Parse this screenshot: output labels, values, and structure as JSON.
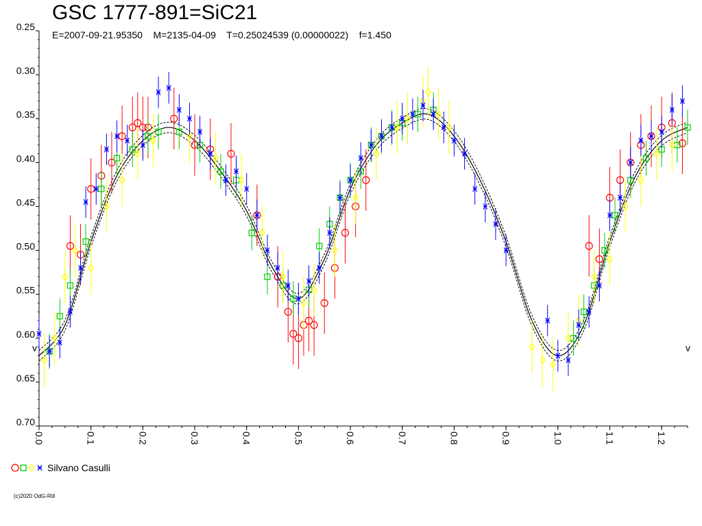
{
  "header": {
    "title": "GSC 1777-891=SiC21",
    "subtitle": "E=2007-09-21.95350    M=2135-04-09    T=0.25024539 (0.00000022)    f=1.450"
  },
  "legend": {
    "observer": "Silvano Casulli",
    "colors": [
      "#ff0000",
      "#00cc00",
      "#ffff00",
      "#0000ff"
    ]
  },
  "copyright": "(c)2020 OdG-Rill",
  "chart_data": {
    "type": "scatter",
    "title": "GSC 1777-891=SiC21",
    "xlim": [
      0.0,
      1.25
    ],
    "ylim": [
      0.25,
      0.7
    ],
    "y_inverted": true,
    "x_ticks": [
      "0.0",
      "0.1",
      "0.2",
      "0.3",
      "0.4",
      "0.5",
      "0.6",
      "0.7",
      "0.8",
      "0.9",
      "1.0",
      "1.1",
      "1.2"
    ],
    "y_ticks": [
      "0.25",
      "0.30",
      "0.35",
      "0.40",
      "0.45",
      "0.50",
      "0.55",
      "0.60",
      "0.65",
      "0.70"
    ],
    "model": {
      "name": "light curve fit",
      "x": [
        0.0,
        0.05,
        0.1,
        0.15,
        0.2,
        0.25,
        0.3,
        0.35,
        0.4,
        0.45,
        0.5,
        0.55,
        0.6,
        0.65,
        0.7,
        0.75,
        0.8,
        0.85,
        0.9,
        0.95,
        1.0,
        1.05,
        1.1,
        1.15,
        1.2,
        1.25
      ],
      "y": [
        0.62,
        0.585,
        0.49,
        0.415,
        0.375,
        0.36,
        0.375,
        0.41,
        0.455,
        0.52,
        0.555,
        0.51,
        0.43,
        0.38,
        0.355,
        0.345,
        0.37,
        0.42,
        0.49,
        0.58,
        0.62,
        0.585,
        0.49,
        0.415,
        0.375,
        0.36
      ],
      "band": 0.006
    },
    "series": [
      {
        "name": "Silvano Casulli (red)",
        "marker": "circle",
        "color": "#ff0000",
        "x": [
          0.06,
          0.08,
          0.1,
          0.12,
          0.14,
          0.16,
          0.18,
          0.19,
          0.2,
          0.21,
          0.26,
          0.3,
          0.33,
          0.37,
          0.42,
          0.46,
          0.48,
          0.49,
          0.5,
          0.51,
          0.52,
          0.53,
          0.55,
          0.57,
          0.59,
          0.61,
          0.63,
          1.06,
          1.08,
          1.1,
          1.12,
          1.14,
          1.16,
          1.18,
          1.2,
          1.22,
          1.24
        ],
        "y": [
          0.495,
          0.505,
          0.43,
          0.415,
          0.4,
          0.37,
          0.36,
          0.355,
          0.36,
          0.36,
          0.35,
          0.38,
          0.385,
          0.39,
          0.46,
          0.53,
          0.57,
          0.595,
          0.6,
          0.585,
          0.58,
          0.585,
          0.56,
          0.52,
          0.48,
          0.45,
          0.42,
          0.495,
          0.51,
          0.44,
          0.42,
          0.4,
          0.38,
          0.37,
          0.36,
          0.355,
          0.378
        ],
        "err": 0.035
      },
      {
        "name": "Silvano Casulli (green)",
        "marker": "square",
        "color": "#00cc00",
        "x": [
          0.02,
          0.04,
          0.06,
          0.09,
          0.12,
          0.15,
          0.18,
          0.21,
          0.23,
          0.27,
          0.31,
          0.35,
          0.38,
          0.41,
          0.44,
          0.47,
          0.49,
          0.52,
          0.54,
          0.56,
          0.58,
          0.6,
          0.62,
          0.64,
          0.66,
          0.68,
          0.7,
          0.73,
          0.76,
          1.03,
          1.05,
          1.07,
          1.09,
          1.11,
          1.14,
          1.17,
          1.2,
          1.23,
          1.25
        ],
        "y": [
          0.615,
          0.575,
          0.54,
          0.49,
          0.43,
          0.395,
          0.385,
          0.37,
          0.365,
          0.365,
          0.38,
          0.41,
          0.42,
          0.48,
          0.53,
          0.54,
          0.555,
          0.545,
          0.495,
          0.47,
          0.44,
          0.42,
          0.41,
          0.38,
          0.37,
          0.36,
          0.355,
          0.345,
          0.34,
          0.6,
          0.57,
          0.54,
          0.5,
          0.46,
          0.42,
          0.395,
          0.385,
          0.38,
          0.36
        ],
        "err": 0.02
      },
      {
        "name": "Silvano Casulli (yellow)",
        "marker": "diamond",
        "color": "#ffff00",
        "x": [
          0.01,
          0.03,
          0.05,
          0.07,
          0.1,
          0.13,
          0.16,
          0.19,
          0.22,
          0.29,
          0.34,
          0.39,
          0.43,
          0.47,
          0.51,
          0.53,
          0.57,
          0.61,
          0.65,
          0.69,
          0.71,
          0.74,
          0.75,
          0.77,
          0.79,
          0.95,
          0.97,
          0.99,
          1.02,
          1.04,
          1.07,
          1.1,
          1.13,
          1.16,
          1.19,
          1.22
        ],
        "y": [
          0.625,
          0.6,
          0.53,
          0.5,
          0.52,
          0.45,
          0.42,
          0.39,
          0.375,
          0.37,
          0.395,
          0.42,
          0.48,
          0.53,
          0.56,
          0.545,
          0.5,
          0.44,
          0.39,
          0.36,
          0.35,
          0.33,
          0.32,
          0.345,
          0.36,
          0.61,
          0.625,
          0.63,
          0.6,
          0.58,
          0.53,
          0.51,
          0.45,
          0.42,
          0.39,
          0.38
        ],
        "err": 0.03
      },
      {
        "name": "Silvano Casulli (blue)",
        "marker": "star",
        "color": "#0000ff",
        "x": [
          0.0,
          0.02,
          0.04,
          0.06,
          0.08,
          0.09,
          0.11,
          0.13,
          0.15,
          0.17,
          0.2,
          0.23,
          0.25,
          0.27,
          0.29,
          0.31,
          0.33,
          0.36,
          0.38,
          0.4,
          0.42,
          0.44,
          0.46,
          0.48,
          0.5,
          0.52,
          0.54,
          0.56,
          0.58,
          0.6,
          0.62,
          0.64,
          0.66,
          0.68,
          0.7,
          0.72,
          0.74,
          0.76,
          0.78,
          0.8,
          0.82,
          0.84,
          0.86,
          0.88,
          0.9,
          0.98,
          1.0,
          1.02,
          1.04,
          1.06,
          1.08,
          1.1,
          1.12,
          1.14,
          1.16,
          1.18,
          1.2,
          1.22,
          1.24
        ],
        "y": [
          0.595,
          0.615,
          0.605,
          0.57,
          0.52,
          0.445,
          0.43,
          0.385,
          0.37,
          0.375,
          0.38,
          0.32,
          0.315,
          0.34,
          0.35,
          0.365,
          0.39,
          0.42,
          0.41,
          0.43,
          0.46,
          0.5,
          0.52,
          0.54,
          0.555,
          0.535,
          0.52,
          0.48,
          0.44,
          0.42,
          0.395,
          0.38,
          0.37,
          0.36,
          0.35,
          0.345,
          0.335,
          0.345,
          0.36,
          0.375,
          0.39,
          0.43,
          0.45,
          0.47,
          0.5,
          0.58,
          0.62,
          0.625,
          0.585,
          0.57,
          0.54,
          0.46,
          0.44,
          0.4,
          0.375,
          0.37,
          0.365,
          0.34,
          0.33
        ],
        "err": 0.018
      }
    ]
  }
}
